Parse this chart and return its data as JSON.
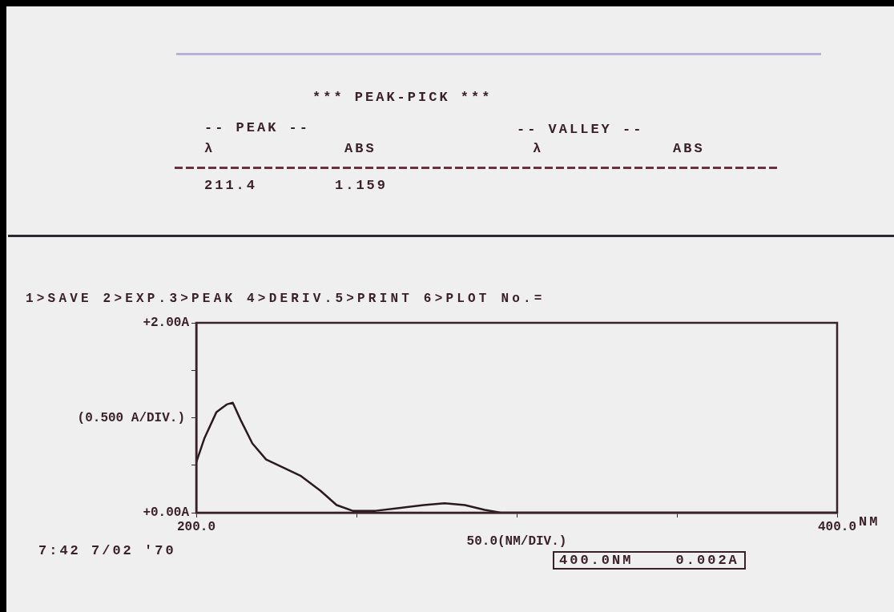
{
  "chart_data": {
    "type": "line",
    "title": "*** PEAK-PICK ***",
    "xlabel": "50.0(NM/DIV.)",
    "ylabel": "(0.500 A/DIV.)",
    "annotations": [
      "-- PEAK --",
      "-- VALLEY --",
      "λ",
      "ABS",
      "λ",
      "ABS",
      "211.4",
      "1.159",
      "1>SAVE 2>EXP.3>PEAK 4>DERIV.5>PRINT 6>PLOT No.=",
      "NM",
      "7:42 7/02 '70",
      "400.0NM 0.002A"
    ],
    "x": [
      200,
      202.5,
      206.3,
      209.5,
      211.4,
      213.8,
      217.5,
      221.8,
      227.5,
      232.5,
      238.8,
      243.8,
      248.8,
      256,
      263.8,
      271,
      277.5,
      283.8,
      290,
      295,
      313.8,
      400
    ],
    "series": [
      {
        "color": "#2a1a1e",
        "values": [
          0.53,
          0.78,
          1.06,
          1.14,
          1.159,
          0.98,
          0.73,
          0.56,
          0.47,
          0.39,
          0.23,
          0.08,
          0.02,
          0.02,
          0.05,
          0.08,
          0.1,
          0.08,
          0.03,
          0,
          0,
          0
        ]
      }
    ],
    "xlim": [
      200,
      400
    ],
    "xticks": [
      {
        "value": 200,
        "label": "200.0"
      },
      {
        "value": 250,
        "label": null
      },
      {
        "value": 300,
        "label": null
      },
      {
        "value": 350,
        "label": null
      },
      {
        "value": 400,
        "label": "400.0"
      }
    ],
    "ylim": [
      0,
      2
    ],
    "yticks": [
      {
        "value": 0,
        "label": "+0.00A"
      },
      {
        "value": 0.5,
        "label": null
      },
      {
        "value": 1,
        "label": null
      },
      {
        "value": 1.5,
        "label": null
      },
      {
        "value": 2,
        "label": "+2.00A"
      }
    ],
    "grid": false,
    "legend": false,
    "marker": "none",
    "line_style": "solid"
  }
}
